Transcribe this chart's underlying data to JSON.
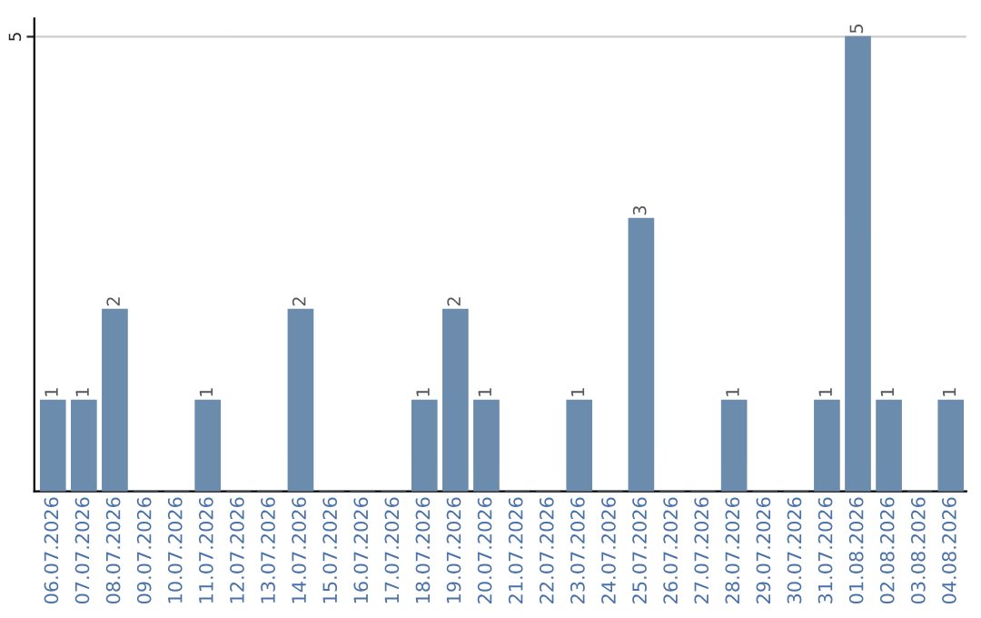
{
  "chart_data": {
    "type": "bar",
    "categories": [
      "06.07.2026",
      "07.07.2026",
      "08.07.2026",
      "09.07.2026",
      "10.07.2026",
      "11.07.2026",
      "12.07.2026",
      "13.07.2026",
      "14.07.2026",
      "15.07.2026",
      "16.07.2026",
      "17.07.2026",
      "18.07.2026",
      "19.07.2026",
      "20.07.2026",
      "21.07.2026",
      "22.07.2026",
      "23.07.2026",
      "24.07.2026",
      "25.07.2026",
      "26.07.2026",
      "27.07.2026",
      "28.07.2026",
      "29.07.2026",
      "30.07.2026",
      "31.07.2026",
      "01.08.2026",
      "02.08.2026",
      "03.08.2026",
      "04.08.2026"
    ],
    "values": [
      1,
      1,
      2,
      0,
      0,
      1,
      0,
      0,
      2,
      0,
      0,
      0,
      1,
      2,
      1,
      0,
      0,
      1,
      0,
      3,
      0,
      0,
      1,
      0,
      0,
      1,
      5,
      1,
      0,
      1
    ],
    "value_labels": [
      "1",
      "1",
      "2",
      null,
      null,
      "1",
      null,
      null,
      "2",
      null,
      null,
      null,
      "1",
      "2",
      "1",
      null,
      null,
      "1",
      null,
      "3",
      null,
      null,
      "1",
      null,
      null,
      "1",
      "5",
      "1",
      null,
      "1"
    ],
    "color": "#6b8cac",
    "ylim": [
      0,
      5.2
    ],
    "yticks": [
      5
    ],
    "grid": "y"
  }
}
